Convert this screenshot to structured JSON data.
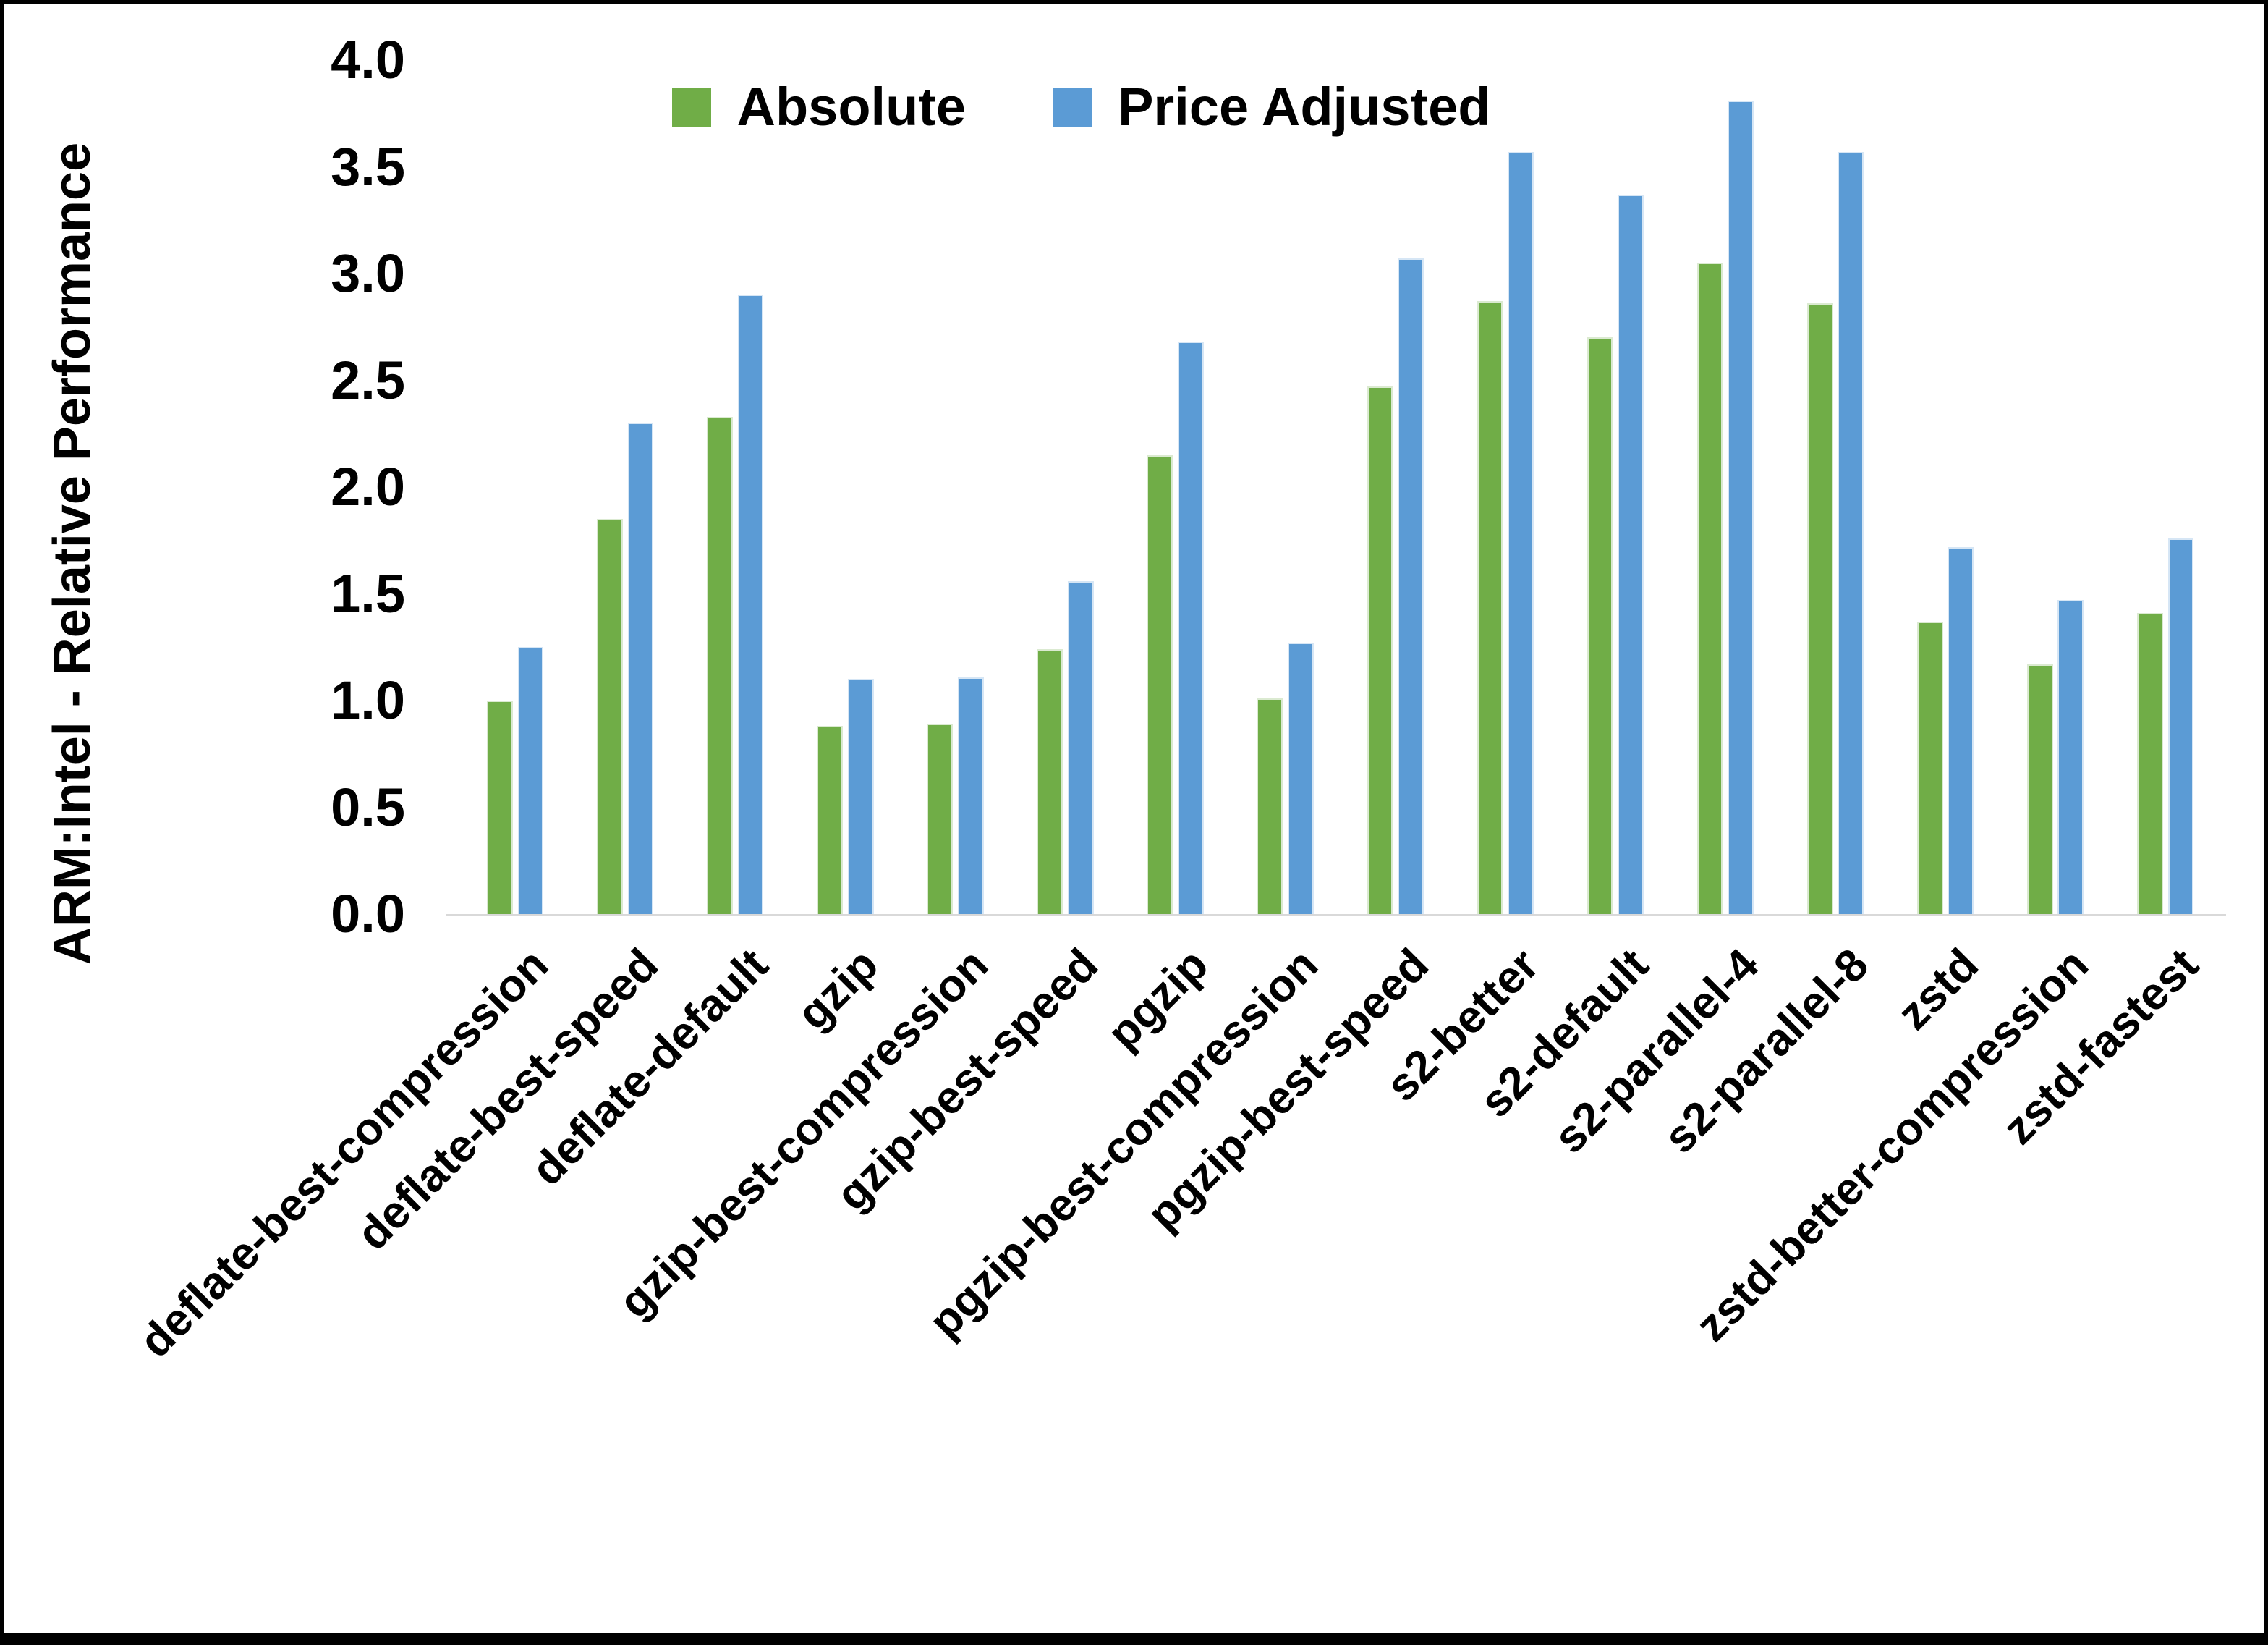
{
  "chart_data": {
    "type": "bar",
    "title": "",
    "xlabel": "",
    "ylabel": "ARM:Intel - Relative Performance",
    "ylim": [
      0.0,
      4.0
    ],
    "ytick_step": 0.5,
    "yticks": [
      "4.0",
      "3.5",
      "3.0",
      "2.5",
      "2.0",
      "1.5",
      "1.0",
      "0.5",
      "0.0"
    ],
    "grid": false,
    "legend_position": "top-center",
    "categories": [
      "deflate-best-compression",
      "deflate-best-speed",
      "deflate-default",
      "gzip",
      "gzip-best-compression",
      "gzip-best-speed",
      "pgzip",
      "pgzip-best-compression",
      "pgzip-best-speed",
      "s2-better",
      "s2-default",
      "s2-parallel-4",
      "s2-parallel-8",
      "zstd",
      "zstd-better-compression",
      "zstd-fastest"
    ],
    "series": [
      {
        "name": "Absolute",
        "color": "#70AD47",
        "values": [
          1.0,
          1.85,
          2.33,
          0.88,
          0.89,
          1.24,
          2.15,
          1.01,
          2.47,
          2.87,
          2.7,
          3.05,
          2.86,
          1.37,
          1.17,
          1.41
        ]
      },
      {
        "name": "Price Adjusted",
        "color": "#5B9BD5",
        "values": [
          1.25,
          2.3,
          2.9,
          1.1,
          1.11,
          1.56,
          2.68,
          1.27,
          3.07,
          3.57,
          3.37,
          3.81,
          3.57,
          1.72,
          1.47,
          1.76
        ]
      }
    ],
    "axis_line_color": "#d9d9d9",
    "text_color": "#000000"
  }
}
